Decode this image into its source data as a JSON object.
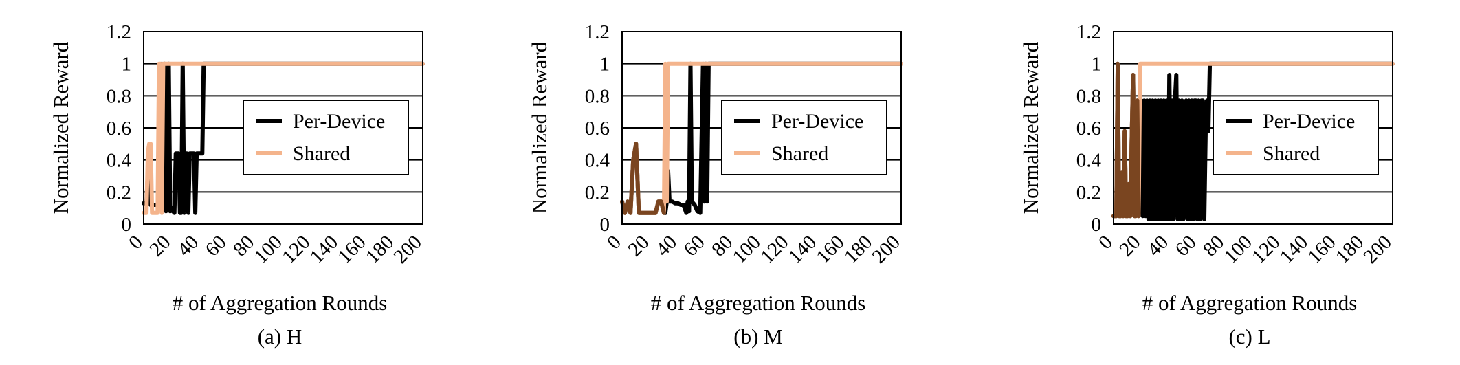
{
  "colors": {
    "per_device": "#000000",
    "shared": "#f4b48c",
    "overlap": "#7a4520",
    "grid": "#000000",
    "background": "#ffffff"
  },
  "chart_data": [
    {
      "type": "line",
      "caption": "(a) H",
      "xlabel": "# of Aggregation Rounds",
      "ylabel": "Normalized Reward",
      "xlim": [
        0,
        200
      ],
      "ylim": [
        0,
        1.2
      ],
      "xticks": [
        "0",
        "20",
        "40",
        "60",
        "80",
        "100",
        "120",
        "140",
        "160",
        "180",
        "200"
      ],
      "yticks": [
        "0",
        "0.2",
        "0.4",
        "0.6",
        "0.8",
        "1",
        "1.2"
      ],
      "grid": true,
      "legend_position": "right-center",
      "series": [
        {
          "name": "Per-Device",
          "color": "#000000",
          "x": [
            0,
            2,
            3,
            5,
            7,
            9,
            11,
            12,
            13,
            14,
            15,
            16,
            17,
            18,
            19,
            20,
            21,
            22,
            23,
            24,
            25,
            26,
            27,
            28,
            29,
            30,
            31,
            32,
            33,
            34,
            35,
            36,
            37,
            38,
            39,
            40,
            41,
            42,
            43,
            44,
            200
          ],
          "y": [
            0.13,
            0.13,
            0.33,
            0.12,
            0.12,
            0.12,
            0.11,
            0.14,
            1.0,
            0.1,
            1.0,
            0.08,
            0.1,
            1.0,
            0.08,
            0.1,
            0.08,
            0.07,
            0.44,
            0.44,
            0.44,
            0.07,
            0.07,
            1.0,
            0.07,
            0.44,
            0.44,
            0.07,
            0.44,
            0.44,
            0.44,
            0.44,
            0.07,
            0.44,
            0.44,
            0.44,
            0.44,
            0.44,
            1.0,
            1.0,
            1.0
          ]
        },
        {
          "name": "Shared",
          "color": "#f4b48c",
          "x": [
            0,
            1,
            2,
            3,
            4,
            5,
            6,
            7,
            8,
            9,
            10,
            11,
            12,
            13,
            14,
            15,
            16,
            17,
            18,
            19,
            20,
            21,
            200
          ],
          "y": [
            0.07,
            0.07,
            0.07,
            0.45,
            0.5,
            0.5,
            0.07,
            0.07,
            0.07,
            0.07,
            0.07,
            1.0,
            1.0,
            0.07,
            1.0,
            1.0,
            1.0,
            1.0,
            1.0,
            1.0,
            1.0,
            1.0,
            1.0
          ]
        }
      ]
    },
    {
      "type": "line",
      "caption": "(b) M",
      "xlabel": "# of Aggregation Rounds",
      "ylabel": "Normalized Reward",
      "xlim": [
        0,
        200
      ],
      "ylim": [
        0,
        1.2
      ],
      "xticks": [
        "0",
        "20",
        "40",
        "60",
        "80",
        "100",
        "120",
        "140",
        "160",
        "180",
        "200"
      ],
      "yticks": [
        "0",
        "0.2",
        "0.4",
        "0.6",
        "0.8",
        "1",
        "1.2"
      ],
      "grid": true,
      "legend_position": "right-center",
      "series": [
        {
          "name": "Per-Device",
          "color": "#000000",
          "x": [
            0,
            2,
            4,
            6,
            8,
            10,
            12,
            14,
            16,
            18,
            20,
            22,
            24,
            26,
            28,
            30,
            31,
            32,
            33,
            34,
            36,
            38,
            40,
            42,
            44,
            46,
            47,
            48,
            49,
            50,
            52,
            54,
            56,
            58,
            59,
            60,
            61,
            62,
            64,
            66,
            200
          ],
          "y": [
            0.14,
            0.07,
            0.14,
            0.07,
            0.4,
            0.5,
            0.07,
            0.07,
            0.07,
            0.07,
            0.07,
            0.07,
            0.07,
            0.14,
            0.14,
            0.07,
            0.07,
            0.14,
            0.33,
            0.14,
            0.14,
            0.13,
            0.13,
            0.12,
            0.12,
            0.07,
            0.14,
            0.08,
            1.0,
            0.14,
            0.12,
            0.08,
            0.07,
            1.0,
            0.14,
            1.0,
            0.14,
            1.0,
            1.0,
            1.0,
            1.0
          ]
        },
        {
          "name": "Shared",
          "color": "#f4b48c",
          "x": [
            0,
            2,
            4,
            6,
            8,
            10,
            12,
            14,
            16,
            18,
            20,
            22,
            24,
            26,
            28,
            30,
            31,
            32,
            33,
            34,
            35,
            36,
            200
          ],
          "y": [
            0.14,
            0.07,
            0.14,
            0.07,
            0.4,
            0.5,
            0.07,
            0.07,
            0.07,
            0.07,
            0.07,
            0.07,
            0.07,
            0.14,
            0.14,
            0.07,
            1.0,
            0.14,
            1.0,
            1.0,
            1.0,
            1.0,
            1.0
          ]
        }
      ]
    },
    {
      "type": "line",
      "caption": "(c) L",
      "xlabel": "# of Aggregation Rounds",
      "ylabel": "Normalized Reward",
      "xlim": [
        0,
        200
      ],
      "ylim": [
        0,
        1.2
      ],
      "xticks": [
        "0",
        "20",
        "40",
        "60",
        "80",
        "100",
        "120",
        "140",
        "160",
        "180",
        "200"
      ],
      "yticks": [
        "0",
        "0.2",
        "0.4",
        "0.6",
        "0.8",
        "1",
        "1.2"
      ],
      "grid": true,
      "legend_position": "right-center",
      "series": [
        {
          "name": "Per-Device",
          "color": "#000000",
          "x": [
            0,
            2,
            3,
            4,
            5,
            6,
            7,
            8,
            9,
            10,
            11,
            12,
            13,
            14,
            15,
            16,
            17,
            18,
            19,
            20,
            21,
            22,
            23,
            24,
            25,
            26,
            27,
            28,
            29,
            30,
            31,
            32,
            33,
            34,
            35,
            36,
            37,
            38,
            39,
            40,
            41,
            42,
            43,
            44,
            45,
            46,
            47,
            48,
            49,
            50,
            51,
            52,
            53,
            54,
            55,
            56,
            57,
            58,
            59,
            60,
            61,
            62,
            63,
            64,
            65,
            66,
            67,
            68,
            69,
            70,
            71,
            200
          ],
          "y": [
            0.05,
            0.05,
            1.0,
            0.05,
            0.05,
            0.32,
            0.05,
            0.58,
            0.05,
            0.05,
            0.25,
            0.05,
            0.52,
            0.93,
            0.05,
            0.05,
            0.77,
            0.05,
            0.77,
            0.77,
            0.05,
            0.77,
            0.05,
            0.77,
            0.03,
            0.77,
            0.03,
            0.77,
            0.03,
            0.77,
            0.03,
            0.77,
            0.03,
            0.77,
            0.03,
            0.77,
            0.03,
            0.77,
            0.03,
            0.93,
            0.03,
            0.77,
            0.03,
            0.77,
            0.93,
            0.03,
            0.77,
            0.03,
            0.77,
            0.03,
            0.3,
            0.77,
            0.03,
            0.77,
            0.03,
            0.77,
            0.03,
            0.77,
            0.77,
            0.03,
            0.77,
            0.03,
            0.77,
            0.77,
            0.03,
            0.58,
            0.77,
            0.58,
            1.0,
            1.0,
            1.0,
            1.0
          ]
        },
        {
          "name": "Shared",
          "color": "#f4b48c",
          "x": [
            0,
            2,
            3,
            4,
            5,
            6,
            7,
            8,
            9,
            10,
            11,
            12,
            13,
            14,
            15,
            16,
            17,
            18,
            19,
            20,
            21,
            200
          ],
          "y": [
            0.05,
            0.05,
            1.0,
            0.05,
            0.05,
            0.32,
            0.05,
            0.58,
            0.05,
            0.05,
            0.25,
            0.05,
            0.52,
            0.93,
            0.05,
            0.05,
            0.77,
            0.05,
            1.0,
            1.0,
            1.0,
            1.0
          ]
        }
      ]
    }
  ]
}
